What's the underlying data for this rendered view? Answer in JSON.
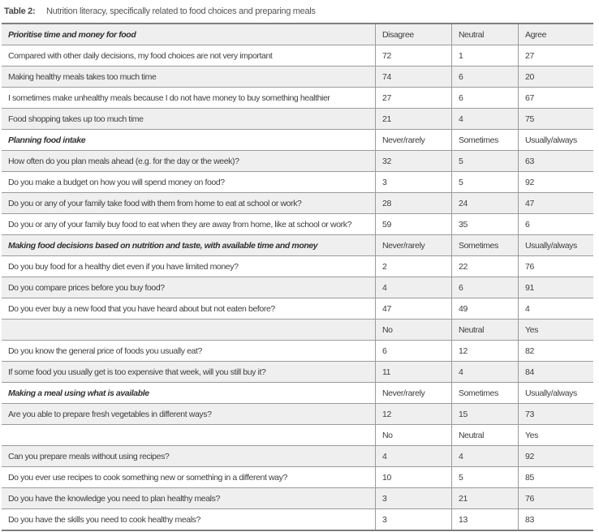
{
  "title": {
    "label": "Table 2:",
    "text": "Nutrition literacy, specifically related to food choices and preparing meals"
  },
  "table": {
    "rows": [
      {
        "type": "section",
        "cells": [
          "Prioritise time and money for food",
          "Disagree",
          "Neutral",
          "Agree"
        ]
      },
      {
        "type": "data",
        "cells": [
          "Compared with other daily decisions, my food choices are not very important",
          "72",
          "1",
          "27"
        ]
      },
      {
        "type": "data",
        "cells": [
          "Making healthy meals takes too much time",
          "74",
          "6",
          "20"
        ]
      },
      {
        "type": "data",
        "cells": [
          "I sometimes make unhealthy meals because I do not have money to buy something healthier",
          "27",
          "6",
          "67"
        ]
      },
      {
        "type": "data",
        "cells": [
          "Food shopping takes up too much time",
          "21",
          "4",
          "75"
        ]
      },
      {
        "type": "section",
        "cells": [
          "Planning food intake",
          "Never/rarely",
          "Sometimes",
          "Usually/always"
        ]
      },
      {
        "type": "data",
        "cells": [
          "How often do you plan meals ahead (e.g. for the day or the week)?",
          "32",
          "5",
          "63"
        ]
      },
      {
        "type": "data",
        "cells": [
          "Do you make a budget on how you will spend money on food?",
          "3",
          "5",
          "92"
        ]
      },
      {
        "type": "data",
        "cells": [
          "Do you or any of your family take food with them from home to eat at school or work?",
          "28",
          "24",
          "47"
        ]
      },
      {
        "type": "data",
        "cells": [
          "Do you or any of your family buy food to eat when they are away from home, like at school or work?",
          "59",
          "35",
          "6"
        ]
      },
      {
        "type": "section",
        "cells": [
          "Making food decisions based on nutrition and taste, with available time and money",
          "Never/rarely",
          "Sometimes",
          "Usually/always"
        ]
      },
      {
        "type": "data",
        "cells": [
          "Do you buy food for a healthy diet even if you have limited money?",
          "2",
          "22",
          "76"
        ]
      },
      {
        "type": "data",
        "cells": [
          "Do you compare prices before you buy food?",
          "4",
          "6",
          "91"
        ]
      },
      {
        "type": "data",
        "cells": [
          "Do you ever buy a new food that you have heard about but not eaten before?",
          "47",
          "49",
          "4"
        ]
      },
      {
        "type": "subheader",
        "cells": [
          "",
          "No",
          "Neutral",
          "Yes"
        ]
      },
      {
        "type": "data",
        "cells": [
          "Do you know the general price of foods you usually eat?",
          "6",
          "12",
          "82"
        ]
      },
      {
        "type": "data",
        "cells": [
          "If some food you usually get is too expensive that week, will you still buy it?",
          "11",
          "4",
          "84"
        ]
      },
      {
        "type": "section",
        "cells": [
          "Making a meal using what is available",
          "Never/rarely",
          "Sometimes",
          "Usually/always"
        ]
      },
      {
        "type": "data",
        "cells": [
          "Are you able to prepare fresh vegetables in different ways?",
          "12",
          "15",
          "73"
        ]
      },
      {
        "type": "subheader",
        "cells": [
          "",
          "No",
          "Neutral",
          "Yes"
        ]
      },
      {
        "type": "data",
        "cells": [
          "Can you prepare meals without using recipes?",
          "4",
          "4",
          "92"
        ]
      },
      {
        "type": "data",
        "cells": [
          "Do you ever use recipes to cook something new or something in a different way?",
          "10",
          "5",
          "85"
        ]
      },
      {
        "type": "data",
        "cells": [
          "Do you have the knowledge you need to plan healthy meals?",
          "3",
          "21",
          "76"
        ]
      },
      {
        "type": "data",
        "cells": [
          "Do you have the skills you need to cook healthy meals?",
          "3",
          "13",
          "83"
        ]
      }
    ]
  }
}
